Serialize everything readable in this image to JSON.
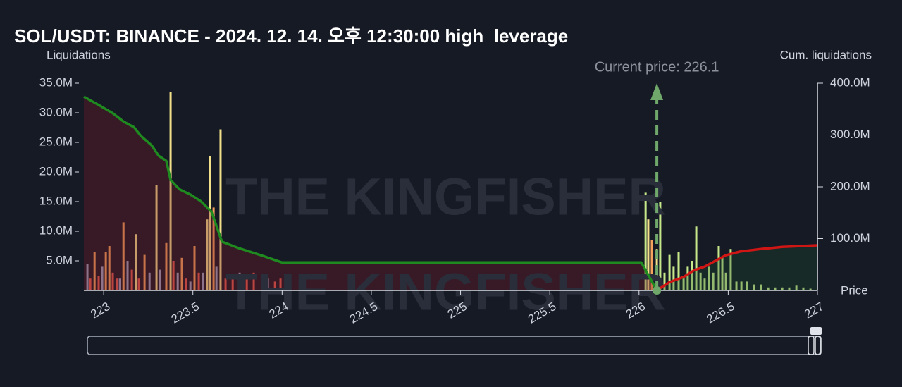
{
  "chart_data": {
    "type": "bar",
    "title": "SOL/USDT: BINANCE - 2024. 12. 14. 오후 12:30:00 high_leverage",
    "y_label": "Liquidations",
    "y2_label": "Cum. liquidations",
    "x_label": "Price",
    "watermark": "THE KINGFISHER",
    "xlim": [
      222.889,
      227.0
    ],
    "xticks": [
      223,
      223.5,
      224,
      224.5,
      225,
      225.5,
      226,
      226.5,
      227
    ],
    "ylim": [
      0,
      35000000
    ],
    "yticks": [
      {
        "value": 5000000,
        "label": "5.0M"
      },
      {
        "value": 10000000,
        "label": "10.0M"
      },
      {
        "value": 15000000,
        "label": "15.0M"
      },
      {
        "value": 20000000,
        "label": "20.0M"
      },
      {
        "value": 25000000,
        "label": "25.0M"
      },
      {
        "value": 30000000,
        "label": "30.0M"
      },
      {
        "value": 35000000,
        "label": "35.0M"
      }
    ],
    "y2lim": [
      0,
      400000000
    ],
    "y2ticks": [
      {
        "value": 100000000,
        "label": "100.0M"
      },
      {
        "value": 200000000,
        "label": "200.0M"
      },
      {
        "value": 300000000,
        "label": "300.0M"
      },
      {
        "value": 400000000,
        "label": "400.0M"
      }
    ],
    "current_price": {
      "value": 226.1,
      "label": "Current price: 226.1",
      "color": "#6fa86a"
    },
    "bars": {
      "x": [
        222.909,
        222.925,
        222.949,
        222.972,
        222.992,
        223.012,
        223.032,
        223.051,
        223.075,
        223.091,
        223.111,
        223.134,
        223.158,
        223.182,
        223.197,
        223.229,
        223.257,
        223.296,
        223.316,
        223.351,
        223.375,
        223.391,
        223.415,
        223.438,
        223.462,
        223.486,
        223.509,
        223.533,
        223.557,
        223.58,
        223.596,
        223.616,
        223.632,
        223.655,
        223.683,
        223.723,
        223.762,
        223.802,
        223.841,
        223.92,
        223.96,
        223.991,
        226.037,
        226.052,
        226.072,
        226.1,
        226.119,
        226.143,
        226.171,
        226.194,
        226.222,
        226.25,
        226.273,
        226.297,
        226.321,
        226.345,
        226.368,
        226.392,
        226.416,
        226.447,
        226.467,
        226.487,
        226.514,
        226.546,
        226.574,
        226.605,
        226.645,
        226.684,
        226.724,
        226.763,
        226.803,
        226.842,
        226.882,
        226.921,
        226.961
      ],
      "values": [
        4500000,
        2000000,
        6500000,
        2500000,
        4000000,
        6500000,
        7500000,
        3000000,
        2000000,
        2000000,
        11500000,
        5000000,
        3500000,
        9500000,
        2000000,
        6000000,
        3000000,
        17800000,
        3500000,
        8000000,
        33500000,
        5000000,
        3000000,
        5500000,
        2000000,
        1500000,
        7500000,
        3000000,
        3000000,
        12000000,
        22700000,
        14000000,
        4000000,
        27200000,
        2000000,
        2000000,
        3000000,
        2000000,
        3000000,
        2000000,
        1500000,
        2000000,
        16500000,
        12000000,
        8500000,
        7000000,
        15000000,
        3000000,
        6000000,
        4000000,
        6500000,
        2000000,
        4000000,
        5000000,
        10800000,
        3000000,
        2000000,
        4000000,
        3000000,
        7500000,
        5500000,
        3000000,
        7000000,
        1500000,
        1500000,
        1500000,
        1000000,
        1000000,
        500000,
        500000,
        500000,
        500000,
        800000,
        500000,
        300000
      ],
      "colors": [
        "#9aa3c0",
        "#e05a4f",
        "#f5a25d",
        "#e05a4f",
        "#9aa3c0",
        "#f5a25d",
        "#f5a25d",
        "#e05a4f",
        "#e05a4f",
        "#9aa3c0",
        "#f5a25d",
        "#9aa3c0",
        "#e05a4f",
        "#f2e08a",
        "#e05a4f",
        "#f5a25d",
        "#9aa3c0",
        "#f2e08a",
        "#9aa3c0",
        "#f5a25d",
        "#f2e08a",
        "#e05a4f",
        "#9aa3c0",
        "#f5a25d",
        "#e05a4f",
        "#9aa3c0",
        "#f5a25d",
        "#e05a4f",
        "#9aa3c0",
        "#f2e08a",
        "#f2e08a",
        "#f5a25d",
        "#9aa3c0",
        "#f2e08a",
        "#e05a4f",
        "#e05a4f",
        "#9aa3c0",
        "#e05a4f",
        "#e05a4f",
        "#9aa3c0",
        "#e05a4f",
        "#e05a4f",
        "#c7e88a",
        "#f2e08a",
        "#f5a25d",
        "#f2e08a",
        "#c7e88a",
        "#c7e88a",
        "#c7e88a",
        "#c7e88a",
        "#c7e88a",
        "#c7e88a",
        "#c7e88a",
        "#c7e88a",
        "#c7e88a",
        "#c7e88a",
        "#c7e88a",
        "#c7e88a",
        "#c7e88a",
        "#c7e88a",
        "#c7e88a",
        "#c7e88a",
        "#c7e88a",
        "#c7e88a",
        "#c7e88a",
        "#c7e88a",
        "#c7e88a",
        "#c7e88a",
        "#c7e88a",
        "#c7e88a",
        "#c7e88a",
        "#c7e88a",
        "#c7e88a",
        "#c7e88a",
        "#c7e88a"
      ]
    },
    "lines": [
      {
        "color": "#1f8a1f",
        "fill": "rgba(120,30,40,0.35)",
        "axis": "y2",
        "x": [
          222.889,
          222.972,
          223.051,
          223.111,
          223.17,
          223.209,
          223.269,
          223.308,
          223.351,
          223.375,
          223.426,
          223.486,
          223.545,
          223.604,
          223.663,
          223.762,
          223.881,
          223.999,
          226.013,
          226.1
        ],
        "values": [
          374000000,
          358000000,
          342000000,
          326000000,
          315000000,
          298000000,
          280000000,
          260000000,
          250000000,
          213000000,
          195000000,
          185000000,
          172000000,
          152000000,
          94000000,
          81000000,
          68000000,
          54000000,
          54000000,
          0
        ]
      },
      {
        "color": "#d01515",
        "fill": "rgba(30,80,50,0.3)",
        "axis": "y2",
        "x": [
          226.1,
          226.171,
          226.25,
          226.309,
          226.368,
          226.427,
          226.487,
          226.566,
          226.684,
          226.803,
          227.0
        ],
        "values": [
          0,
          16000000,
          26000000,
          39000000,
          46000000,
          57000000,
          68000000,
          75000000,
          80000000,
          84000000,
          87000000
        ]
      }
    ]
  }
}
